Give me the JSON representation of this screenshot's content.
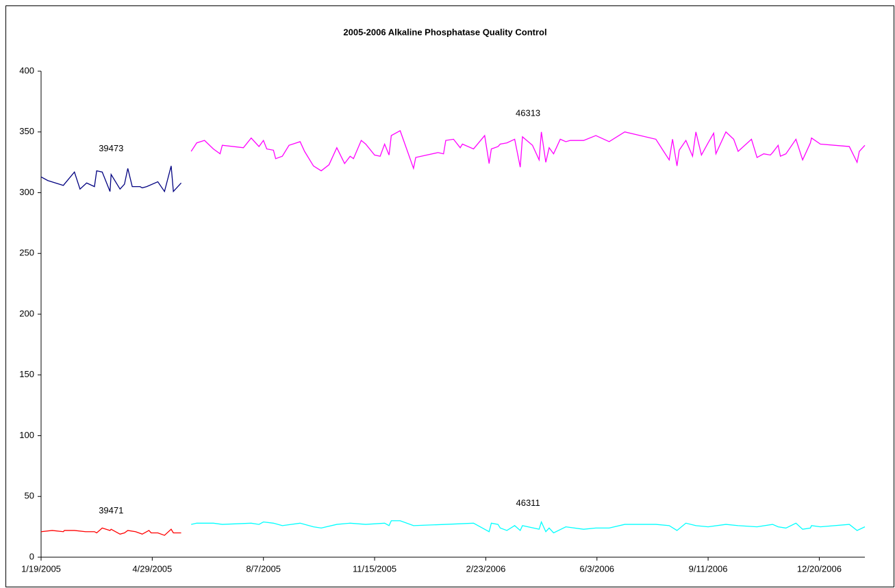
{
  "chart_data": {
    "type": "line",
    "title": "2005-2006 Alkaline Phosphatase Quality Control",
    "xlim": [
      "1/19/2005",
      "1/30/2007"
    ],
    "xticks": [
      "1/19/2005",
      "4/29/2005",
      "8/7/2005",
      "11/15/2005",
      "2/23/2006",
      "6/3/2006",
      "9/11/2006",
      "12/20/2006"
    ],
    "ylim": [
      0,
      400
    ],
    "yticks": [
      0,
      50,
      100,
      150,
      200,
      250,
      300,
      350,
      400
    ],
    "grid": false,
    "series": [
      {
        "name": "39473",
        "color": "#000080",
        "x": [
          "1/19/2005",
          "1/25/2005",
          "2/8/2005",
          "2/18/2005",
          "2/23/2005",
          "3/1/2005",
          "3/8/2005",
          "3/10/2005",
          "3/15/2005",
          "3/22/2005",
          "3/23/2005",
          "3/31/2005",
          "4/4/2005",
          "4/7/2005",
          "4/11/2005",
          "4/18/2005",
          "4/20/2005",
          "4/24/2005",
          "5/4/2005",
          "5/10/2005",
          "5/16/2005",
          "5/18/2005",
          "5/25/2005"
        ],
        "values": [
          313,
          310,
          306,
          317,
          303,
          308,
          305,
          318,
          317,
          301,
          315,
          303,
          307,
          320,
          305,
          305,
          304,
          305,
          309,
          301,
          322,
          301,
          308
        ]
      },
      {
        "name": "46313",
        "color": "#ff00ff",
        "x": [
          "6/3/2005",
          "6/8/2005",
          "6/15/2005",
          "6/23/2005",
          "6/29/2005",
          "7/1/2005",
          "7/20/2005",
          "7/27/2005",
          "8/3/2005",
          "8/7/2005",
          "8/10/2005",
          "8/16/2005",
          "8/18/2005",
          "8/24/2005",
          "8/30/2005",
          "9/9/2005",
          "9/13/2005",
          "9/21/2005",
          "9/28/2005",
          "10/5/2005",
          "10/12/2005",
          "10/19/2005",
          "10/24/2005",
          "10/27/2005",
          "11/3/2005",
          "11/7/2005",
          "11/15/2005",
          "11/20/2005",
          "11/24/2005",
          "11/28/2005",
          "11/30/2005",
          "12/8/2005",
          "12/20/2005",
          "12/22/2005",
          "1/11/2006",
          "1/16/2006",
          "1/18/2006",
          "1/25/2006",
          "1/31/2006",
          "2/2/2006",
          "2/12/2006",
          "2/22/2006",
          "2/26/2006",
          "2/28/2006",
          "3/6/2006",
          "3/8/2006",
          "3/14/2006",
          "3/21/2006",
          "3/26/2006",
          "3/28/2006",
          "4/6/2006",
          "4/12/2006",
          "4/14/2006",
          "4/18/2006",
          "4/21/2006",
          "4/25/2006",
          "5/1/2006",
          "5/6/2006",
          "5/10/2006",
          "5/22/2006",
          "6/2/2006",
          "6/14/2006",
          "6/28/2006",
          "7/26/2006",
          "8/2/2006",
          "8/7/2006",
          "8/10/2006",
          "8/14/2006",
          "8/16/2006",
          "8/22/2006",
          "8/28/2006",
          "8/31/2006",
          "9/5/2006",
          "9/11/2006",
          "9/16/2006",
          "9/18/2006",
          "9/27/2006",
          "10/4/2006",
          "10/8/2006",
          "10/20/2006",
          "10/25/2006",
          "10/31/2006",
          "11/6/2006",
          "11/8/2006",
          "11/13/2006",
          "11/15/2006",
          "11/20/2006",
          "11/29/2006",
          "12/5/2006",
          "12/12/2006",
          "12/13/2006",
          "12/21/2006",
          "1/16/2007",
          "1/23/2007",
          "1/25/2007",
          "1/30/2007"
        ],
        "values": [
          334,
          341,
          343,
          336,
          332,
          339,
          337,
          345,
          338,
          343,
          336,
          335,
          328,
          330,
          339,
          342,
          334,
          322,
          318,
          323,
          337,
          324,
          330,
          328,
          343,
          340,
          331,
          330,
          340,
          331,
          347,
          351,
          320,
          329,
          333,
          332,
          343,
          344,
          337,
          340,
          336,
          347,
          324,
          336,
          338,
          340,
          341,
          344,
          321,
          346,
          339,
          327,
          350,
          325,
          337,
          332,
          344,
          342,
          343,
          343,
          347,
          342,
          350,
          344,
          334,
          327,
          344,
          322,
          335,
          343,
          330,
          350,
          331,
          341,
          349,
          332,
          350,
          344,
          334,
          344,
          329,
          332,
          331,
          333,
          339,
          330,
          332,
          344,
          327,
          341,
          345,
          340,
          338,
          325,
          334,
          339
        ]
      },
      {
        "name": "39471",
        "color": "#ff0000",
        "x": [
          "1/19/2005",
          "1/29/2005",
          "2/8/2005",
          "2/9/2005",
          "2/18/2005",
          "2/28/2005",
          "3/8/2005",
          "3/10/2005",
          "3/15/2005",
          "3/22/2005",
          "3/23/2005",
          "3/31/2005",
          "4/4/2005",
          "4/7/2005",
          "4/14/2005",
          "4/20/2005",
          "4/26/2005",
          "4/28/2005",
          "5/4/2005",
          "5/10/2005",
          "5/16/2005",
          "5/18/2005",
          "5/25/2005"
        ],
        "values": [
          21,
          22,
          21,
          22,
          22,
          21,
          21,
          20,
          24,
          22,
          23,
          19,
          20,
          22,
          21,
          19,
          22,
          20,
          20,
          18,
          23,
          20,
          20
        ]
      },
      {
        "name": "46311",
        "color": "#00ffff",
        "x": [
          "6/3/2005",
          "6/8/2005",
          "6/23/2005",
          "7/1/2005",
          "7/27/2005",
          "8/3/2005",
          "8/7/2005",
          "8/16/2005",
          "8/24/2005",
          "9/9/2005",
          "9/21/2005",
          "9/28/2005",
          "10/12/2005",
          "10/24/2005",
          "11/7/2005",
          "11/24/2005",
          "11/28/2005",
          "11/30/2005",
          "12/8/2005",
          "12/20/2005",
          "1/18/2006",
          "2/12/2006",
          "2/22/2006",
          "2/26/2006",
          "2/28/2006",
          "3/6/2006",
          "3/8/2006",
          "3/14/2006",
          "3/21/2006",
          "3/26/2006",
          "3/28/2006",
          "4/12/2006",
          "4/14/2006",
          "4/18/2006",
          "4/21/2006",
          "4/25/2006",
          "5/6/2006",
          "5/22/2006",
          "6/2/2006",
          "6/14/2006",
          "6/28/2006",
          "7/26/2006",
          "8/7/2006",
          "8/14/2006",
          "8/22/2006",
          "8/31/2006",
          "9/11/2006",
          "9/27/2006",
          "10/8/2006",
          "10/25/2006",
          "11/8/2006",
          "11/13/2006",
          "11/20/2006",
          "11/29/2006",
          "12/5/2006",
          "12/12/2006",
          "12/13/2006",
          "12/21/2006",
          "1/16/2007",
          "1/23/2007",
          "1/30/2007"
        ],
        "values": [
          27,
          28,
          28,
          27,
          28,
          27,
          29,
          28,
          26,
          28,
          25,
          24,
          27,
          28,
          27,
          28,
          26,
          30,
          30,
          26,
          27,
          28,
          23,
          21,
          28,
          27,
          24,
          22,
          26,
          22,
          26,
          23,
          29,
          21,
          24,
          20,
          25,
          23,
          24,
          24,
          27,
          27,
          26,
          22,
          28,
          26,
          25,
          27,
          26,
          25,
          27,
          25,
          24,
          28,
          23,
          24,
          26,
          25,
          27,
          22,
          25
        ]
      }
    ]
  }
}
